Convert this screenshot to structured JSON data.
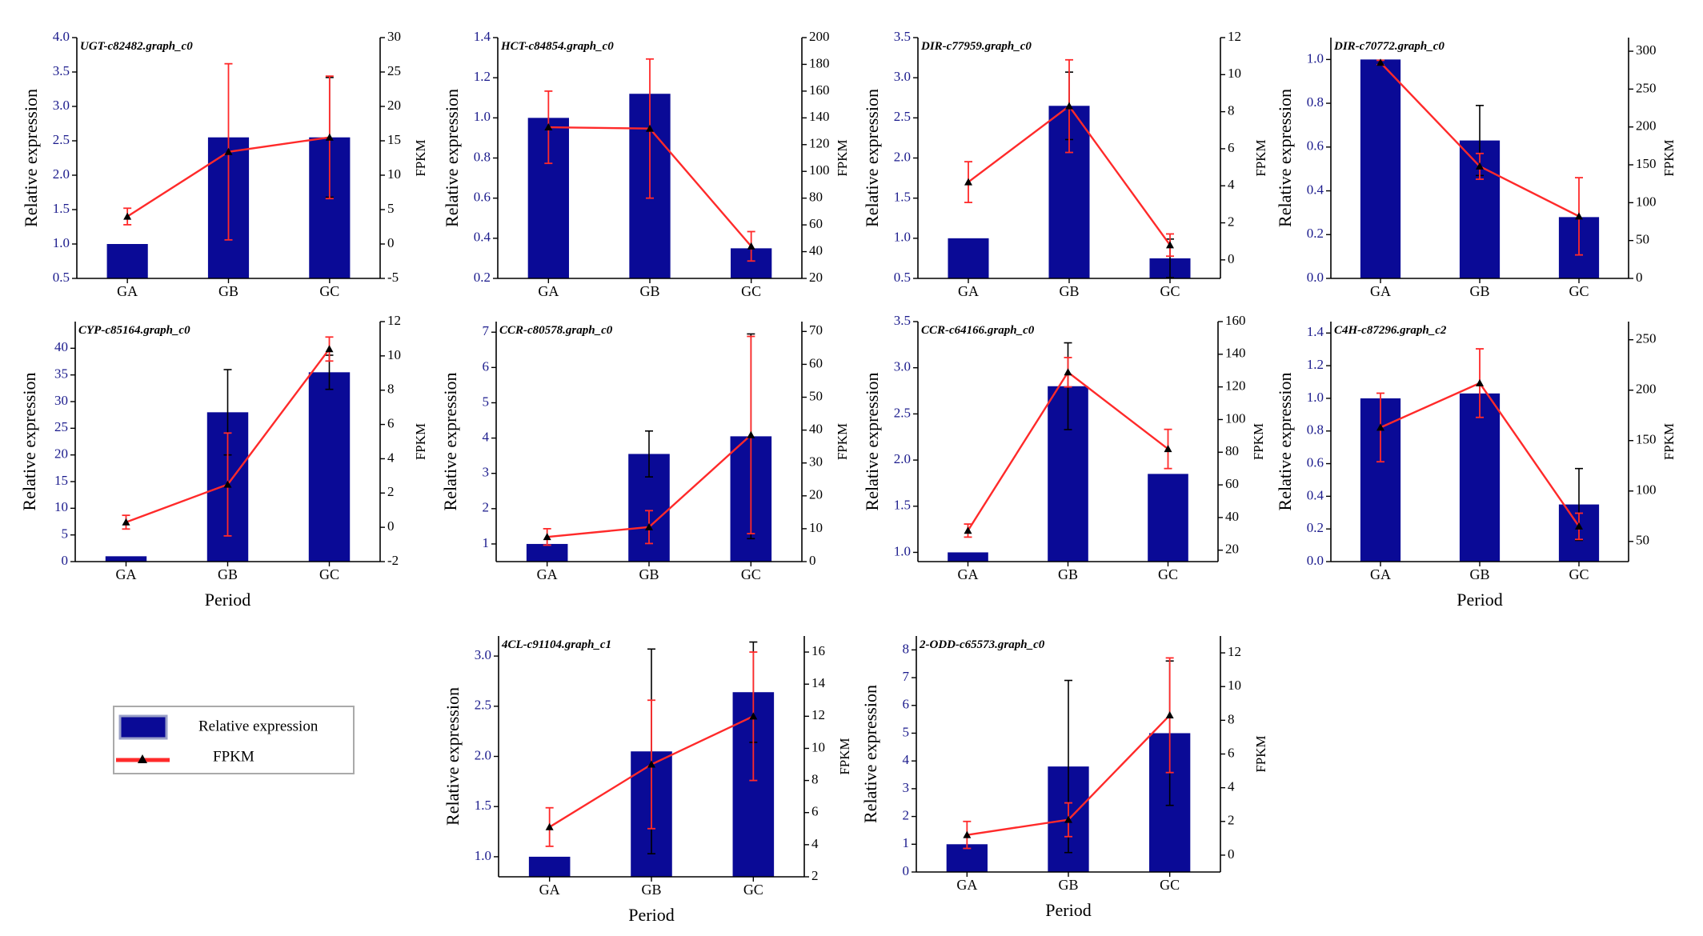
{
  "colors": {
    "bar": "#0a0a96",
    "line": "#ff2a2a",
    "axis_left": "#1a1a8c",
    "marker": "#000000",
    "bar_error": "#000000"
  },
  "legend": {
    "bar_label": "Relative expression",
    "line_label": "FPKM"
  },
  "chart_data": [
    {
      "type": "bar+line",
      "title": "UGT-c82482.graph_c0",
      "categories": [
        "GA",
        "GB",
        "GC"
      ],
      "xlabel": "",
      "ylabel": "Relative expression",
      "y2label": "FPKM",
      "ylim": [
        0.5,
        4.0
      ],
      "yticks": [
        0.5,
        1.0,
        1.5,
        2.0,
        2.5,
        3.0,
        3.5,
        4.0
      ],
      "ytick_labels": [
        "0.5",
        "1.0",
        "1.5",
        "2.0",
        "2.5",
        "3.0",
        "3.5",
        "4.0"
      ],
      "y2lim": [
        -5,
        30
      ],
      "y2ticks": [
        -5,
        0,
        5,
        10,
        15,
        20,
        25,
        30
      ],
      "y2tick_labels": [
        "-5",
        "0",
        "5",
        "10",
        "15",
        "20",
        "25",
        "30"
      ],
      "series": [
        {
          "name": "Relative expression",
          "kind": "bar",
          "axis": "left",
          "values": [
            1.0,
            2.55,
            2.55
          ],
          "errors": [
            0,
            0,
            0.87
          ]
        },
        {
          "name": "FPKM",
          "kind": "line",
          "axis": "right",
          "values": [
            4.0,
            13.4,
            15.5
          ],
          "errors": [
            1.2,
            12.8,
            8.9
          ]
        }
      ]
    },
    {
      "type": "bar+line",
      "title": "HCT-c84854.graph_c0",
      "categories": [
        "GA",
        "GB",
        "GC"
      ],
      "xlabel": "",
      "ylabel": "Relative expression",
      "y2label": "FPKM",
      "ylim": [
        0.2,
        1.4
      ],
      "yticks": [
        0.2,
        0.4,
        0.6,
        0.8,
        1.0,
        1.2,
        1.4
      ],
      "ytick_labels": [
        "0.2",
        "0.4",
        "0.6",
        "0.8",
        "1.0",
        "1.2",
        "1.4"
      ],
      "y2lim": [
        20,
        200
      ],
      "y2ticks": [
        20,
        40,
        60,
        80,
        100,
        120,
        140,
        160,
        180,
        200
      ],
      "y2tick_labels": [
        "20",
        "40",
        "60",
        "80",
        "100",
        "120",
        "140",
        "160",
        "180",
        "200"
      ],
      "series": [
        {
          "name": "Relative expression",
          "kind": "bar",
          "axis": "left",
          "values": [
            1.0,
            1.12,
            0.35
          ],
          "errors": [
            0,
            0,
            0
          ]
        },
        {
          "name": "FPKM",
          "kind": "line",
          "axis": "right",
          "values": [
            133,
            132,
            44
          ],
          "errors": [
            27,
            52,
            11
          ]
        }
      ]
    },
    {
      "type": "bar+line",
      "title": "DIR-c77959.graph_c0",
      "categories": [
        "GA",
        "GB",
        "GC"
      ],
      "xlabel": "",
      "ylabel": "Relative expression",
      "y2label": "FPKM",
      "ylim": [
        0.5,
        3.5
      ],
      "yticks": [
        0.5,
        1.0,
        1.5,
        2.0,
        2.5,
        3.0,
        3.5
      ],
      "ytick_labels": [
        "0.5",
        "1.0",
        "1.5",
        "2.0",
        "2.5",
        "3.0",
        "3.5"
      ],
      "y2lim": [
        -1,
        12
      ],
      "y2ticks": [
        0,
        2,
        4,
        6,
        8,
        10,
        12
      ],
      "y2tick_labels": [
        "0",
        "2",
        "4",
        "6",
        "8",
        "10",
        "12"
      ],
      "series": [
        {
          "name": "Relative expression",
          "kind": "bar",
          "axis": "left",
          "values": [
            1.0,
            2.65,
            0.75
          ],
          "errors": [
            0,
            0.42,
            0.24
          ]
        },
        {
          "name": "FPKM",
          "kind": "line",
          "axis": "right",
          "values": [
            4.2,
            8.3,
            0.8
          ],
          "errors": [
            1.1,
            2.5,
            0.6
          ]
        }
      ]
    },
    {
      "type": "bar+line",
      "title": "DIR-c70772.graph_c0",
      "categories": [
        "GA",
        "GB",
        "GC"
      ],
      "xlabel": "",
      "ylabel": "Relative expression",
      "y2label": "FPKM",
      "ylim": [
        0.0,
        1.1
      ],
      "yticks": [
        0.0,
        0.2,
        0.4,
        0.6,
        0.8,
        1.0
      ],
      "ytick_labels": [
        "0.0",
        "0.2",
        "0.4",
        "0.6",
        "0.8",
        "1.0"
      ],
      "y2lim": [
        0,
        318
      ],
      "y2ticks": [
        0,
        50,
        100,
        150,
        200,
        250,
        300
      ],
      "y2tick_labels": [
        "0",
        "50",
        "100",
        "150",
        "200",
        "250",
        "300"
      ],
      "series": [
        {
          "name": "Relative expression",
          "kind": "bar",
          "axis": "left",
          "values": [
            1.0,
            0.63,
            0.28
          ],
          "errors": [
            0,
            0.16,
            0
          ]
        },
        {
          "name": "FPKM",
          "kind": "line",
          "axis": "right",
          "values": [
            285,
            148,
            82
          ],
          "errors": [
            3,
            17,
            51
          ]
        }
      ]
    },
    {
      "type": "bar+line",
      "title": "CYP-c85164.graph_c0",
      "categories": [
        "GA",
        "GB",
        "GC"
      ],
      "xlabel": "Period",
      "ylabel": "Relative expression",
      "y2label": "FPKM",
      "ylim": [
        0,
        45
      ],
      "yticks": [
        0,
        5,
        10,
        15,
        20,
        25,
        30,
        35,
        40
      ],
      "ytick_labels": [
        "0",
        "5",
        "10",
        "15",
        "20",
        "25",
        "30",
        "35",
        "40"
      ],
      "y2lim": [
        -2,
        12
      ],
      "y2ticks": [
        -2,
        0,
        2,
        4,
        6,
        8,
        10,
        12
      ],
      "y2tick_labels": [
        "-2",
        "0",
        "2",
        "4",
        "6",
        "8",
        "10",
        "12"
      ],
      "series": [
        {
          "name": "Relative expression",
          "kind": "bar",
          "axis": "left",
          "values": [
            1.0,
            28.0,
            35.5
          ],
          "errors": [
            0,
            8.0,
            3.2
          ]
        },
        {
          "name": "FPKM",
          "kind": "line",
          "axis": "right",
          "values": [
            0.3,
            2.5,
            10.4
          ],
          "errors": [
            0.4,
            3.0,
            0.7
          ]
        }
      ]
    },
    {
      "type": "bar+line",
      "title": "CCR-c80578.graph_c0",
      "categories": [
        "GA",
        "GB",
        "GC"
      ],
      "xlabel": "",
      "ylabel": "Relative expression",
      "y2label": "FPKM",
      "ylim": [
        0.5,
        7.3
      ],
      "yticks": [
        1,
        2,
        3,
        4,
        5,
        6,
        7
      ],
      "ytick_labels": [
        "1",
        "2",
        "3",
        "4",
        "5",
        "6",
        "7"
      ],
      "y2lim": [
        0,
        73
      ],
      "y2ticks": [
        0,
        10,
        20,
        30,
        40,
        50,
        60,
        70
      ],
      "y2tick_labels": [
        "0",
        "10",
        "20",
        "30",
        "40",
        "50",
        "60",
        "70"
      ],
      "series": [
        {
          "name": "Relative expression",
          "kind": "bar",
          "axis": "left",
          "values": [
            1.0,
            3.55,
            4.05
          ],
          "errors": [
            0,
            0.65,
            2.9
          ]
        },
        {
          "name": "FPKM",
          "kind": "line",
          "axis": "right",
          "values": [
            7.5,
            10.5,
            38.5
          ],
          "errors": [
            2.5,
            5.0,
            30.0
          ]
        }
      ]
    },
    {
      "type": "bar+line",
      "title": "CCR-c64166.graph_c0",
      "categories": [
        "GA",
        "GB",
        "GC"
      ],
      "xlabel": "",
      "ylabel": "Relative expression",
      "y2label": "FPKM",
      "ylim": [
        0.9,
        3.5
      ],
      "yticks": [
        1.0,
        1.5,
        2.0,
        2.5,
        3.0,
        3.5
      ],
      "ytick_labels": [
        "1.0",
        "1.5",
        "2.0",
        "2.5",
        "3.0",
        "3.5"
      ],
      "y2lim": [
        13,
        160
      ],
      "y2ticks": [
        20,
        40,
        60,
        80,
        100,
        120,
        140,
        160
      ],
      "y2tick_labels": [
        "20",
        "40",
        "60",
        "80",
        "100",
        "120",
        "140",
        "160"
      ],
      "series": [
        {
          "name": "Relative expression",
          "kind": "bar",
          "axis": "left",
          "values": [
            1.0,
            2.8,
            1.85
          ],
          "errors": [
            0,
            0.47,
            0
          ]
        },
        {
          "name": "FPKM",
          "kind": "line",
          "axis": "right",
          "values": [
            32,
            129,
            82
          ],
          "errors": [
            4,
            9,
            12
          ]
        }
      ]
    },
    {
      "type": "bar+line",
      "title": "C4H-c87296.graph_c2",
      "categories": [
        "GA",
        "GB",
        "GC"
      ],
      "xlabel": "Period",
      "ylabel": "Relative expression",
      "y2label": "FPKM",
      "ylim": [
        0.0,
        1.47
      ],
      "yticks": [
        0.0,
        0.2,
        0.4,
        0.6,
        0.8,
        1.0,
        1.2,
        1.4
      ],
      "ytick_labels": [
        "0.0",
        "0.2",
        "0.4",
        "0.6",
        "0.8",
        "1.0",
        "1.2",
        "1.4"
      ],
      "y2lim": [
        30,
        268
      ],
      "y2ticks": [
        50,
        100,
        150,
        200,
        250
      ],
      "y2tick_labels": [
        "50",
        "100",
        "150",
        "200",
        "250"
      ],
      "series": [
        {
          "name": "Relative expression",
          "kind": "bar",
          "axis": "left",
          "values": [
            1.0,
            1.03,
            0.35
          ],
          "errors": [
            0,
            0,
            0.22
          ]
        },
        {
          "name": "FPKM",
          "kind": "line",
          "axis": "right",
          "values": [
            163,
            207,
            65
          ],
          "errors": [
            34,
            34,
            13
          ]
        }
      ]
    },
    {
      "type": "bar+line",
      "title": "4CL-c91104.graph_c1",
      "categories": [
        "GA",
        "GB",
        "GC"
      ],
      "xlabel": "Period",
      "ylabel": "Relative expression",
      "y2label": "FPKM",
      "ylim": [
        0.8,
        3.2
      ],
      "yticks": [
        1.0,
        1.5,
        2.0,
        2.5,
        3.0
      ],
      "ytick_labels": [
        "1.0",
        "1.5",
        "2.0",
        "2.5",
        "3.0"
      ],
      "y2lim": [
        2,
        17
      ],
      "y2ticks": [
        2,
        4,
        6,
        8,
        10,
        12,
        14,
        16
      ],
      "y2tick_labels": [
        "2",
        "4",
        "6",
        "8",
        "10",
        "12",
        "14",
        "16"
      ],
      "series": [
        {
          "name": "Relative expression",
          "kind": "bar",
          "axis": "left",
          "values": [
            1.0,
            2.05,
            2.64
          ],
          "errors": [
            0,
            1.02,
            0.5
          ]
        },
        {
          "name": "FPKM",
          "kind": "line",
          "axis": "right",
          "values": [
            5.1,
            9.0,
            12.0
          ],
          "errors": [
            1.2,
            4.0,
            4.0
          ]
        }
      ]
    },
    {
      "type": "bar+line",
      "title": "2-ODD-c65573.graph_c0",
      "categories": [
        "GA",
        "GB",
        "GC"
      ],
      "xlabel": "Period",
      "ylabel": "Relative expression",
      "y2label": "FPKM",
      "ylim": [
        0,
        8.5
      ],
      "yticks": [
        0,
        1,
        2,
        3,
        4,
        5,
        6,
        7,
        8
      ],
      "ytick_labels": [
        "0",
        "1",
        "2",
        "3",
        "4",
        "5",
        "6",
        "7",
        "8"
      ],
      "y2lim": [
        -1,
        13
      ],
      "y2ticks": [
        0,
        2,
        4,
        6,
        8,
        10,
        12
      ],
      "y2tick_labels": [
        "0",
        "2",
        "4",
        "6",
        "8",
        "10",
        "12"
      ],
      "series": [
        {
          "name": "Relative expression",
          "kind": "bar",
          "axis": "left",
          "values": [
            1.0,
            3.8,
            5.0
          ],
          "errors": [
            0,
            3.1,
            2.6
          ]
        },
        {
          "name": "FPKM",
          "kind": "line",
          "axis": "right",
          "values": [
            1.2,
            2.1,
            8.3
          ],
          "errors": [
            0.8,
            1.0,
            3.4
          ]
        }
      ]
    }
  ]
}
